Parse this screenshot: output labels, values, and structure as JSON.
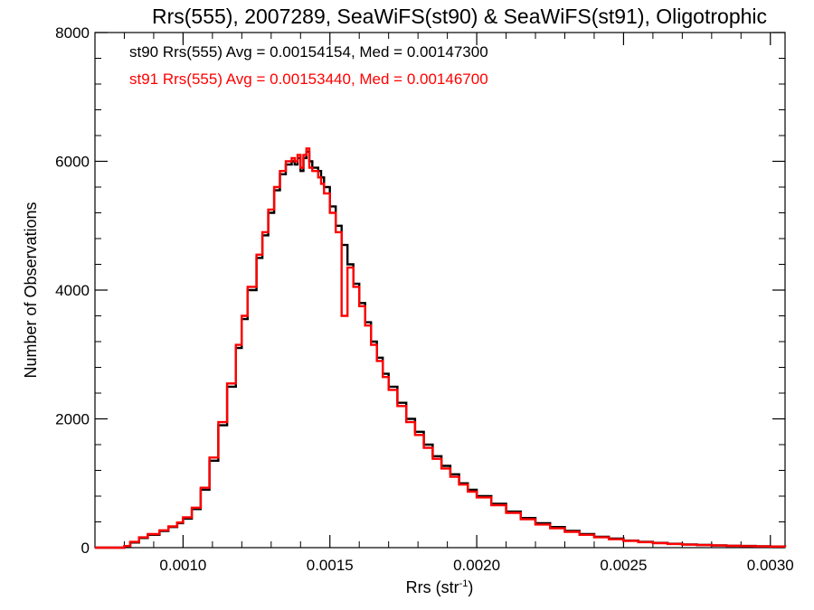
{
  "chart_data": {
    "type": "line",
    "title": "Rrs(555), 2007289, SeaWiFS(st90) & SeaWiFS(st91), Oligotrophic",
    "xlabel": "Rrs (str",
    "xlabel_sup": "-1",
    "xlabel_end": ")",
    "ylabel": "Number of Observations",
    "xlim": [
      0.0007,
      0.00305
    ],
    "ylim": [
      0,
      8000
    ],
    "x_ticks": [
      0.001,
      0.0015,
      0.002,
      0.0025,
      0.003
    ],
    "x_tick_labels": [
      "0.0010",
      "0.0015",
      "0.0020",
      "0.0025",
      "0.0030"
    ],
    "y_ticks": [
      0,
      2000,
      4000,
      6000,
      8000
    ],
    "y_tick_labels": [
      "0",
      "2000",
      "4000",
      "6000",
      "8000"
    ],
    "grid": false,
    "legend_position": "top-left",
    "series": [
      {
        "name": "st90",
        "legend": "st90 Rrs(555) Avg = 0.00154154, Med = 0.00147300",
        "color": "#000000",
        "step": true,
        "x": [
          0.0007,
          0.00078,
          0.0008,
          0.00082,
          0.00085,
          0.00088,
          0.00092,
          0.00095,
          0.00098,
          0.001,
          0.00103,
          0.00106,
          0.00109,
          0.00112,
          0.00115,
          0.00118,
          0.0012,
          0.00122,
          0.00125,
          0.00127,
          0.00129,
          0.00131,
          0.00133,
          0.00135,
          0.00137,
          0.00138,
          0.00139,
          0.0014,
          0.00141,
          0.00142,
          0.00143,
          0.00144,
          0.00145,
          0.00146,
          0.00147,
          0.00148,
          0.0015,
          0.00152,
          0.00154,
          0.00156,
          0.00158,
          0.0016,
          0.00162,
          0.00164,
          0.00166,
          0.00168,
          0.0017,
          0.00173,
          0.00176,
          0.00179,
          0.00182,
          0.00185,
          0.00188,
          0.00191,
          0.00194,
          0.00197,
          0.002,
          0.00205,
          0.0021,
          0.00215,
          0.0022,
          0.00225,
          0.0023,
          0.00235,
          0.0024,
          0.00245,
          0.0025,
          0.00255,
          0.0026,
          0.00265,
          0.0027,
          0.00275,
          0.0028,
          0.00285,
          0.0029,
          0.00295,
          0.003,
          0.00305
        ],
        "y": [
          0,
          0,
          20,
          80,
          150,
          200,
          260,
          320,
          380,
          450,
          600,
          900,
          1350,
          1900,
          2500,
          3100,
          3550,
          4000,
          4500,
          4850,
          5200,
          5550,
          5800,
          5950,
          6000,
          5950,
          6050,
          5850,
          6050,
          6150,
          6000,
          5900,
          5900,
          5850,
          5750,
          5600,
          5300,
          5000,
          4700,
          4400,
          4100,
          3800,
          3500,
          3200,
          2950,
          2700,
          2500,
          2250,
          2000,
          1800,
          1600,
          1420,
          1270,
          1140,
          1000,
          900,
          800,
          680,
          560,
          460,
          380,
          320,
          260,
          210,
          170,
          140,
          110,
          90,
          75,
          60,
          50,
          42,
          35,
          30,
          26,
          22,
          18,
          15
        ]
      },
      {
        "name": "st91",
        "legend": "st91 Rrs(555) Avg = 0.00153440, Med = 0.00146700",
        "color": "#ff0000",
        "step": true,
        "x": [
          0.0007,
          0.00078,
          0.0008,
          0.00082,
          0.00085,
          0.00088,
          0.00092,
          0.00095,
          0.00098,
          0.001,
          0.00103,
          0.00106,
          0.00109,
          0.00112,
          0.00115,
          0.00118,
          0.0012,
          0.00122,
          0.00125,
          0.00127,
          0.00129,
          0.00131,
          0.00133,
          0.00135,
          0.00137,
          0.00138,
          0.00139,
          0.0014,
          0.00141,
          0.00142,
          0.00143,
          0.00144,
          0.00145,
          0.00146,
          0.00147,
          0.00148,
          0.0015,
          0.00152,
          0.00154,
          0.00156,
          0.00158,
          0.0016,
          0.00162,
          0.00164,
          0.00166,
          0.00168,
          0.0017,
          0.00173,
          0.00176,
          0.00179,
          0.00182,
          0.00185,
          0.00188,
          0.00191,
          0.00194,
          0.00197,
          0.002,
          0.00205,
          0.0021,
          0.00215,
          0.0022,
          0.00225,
          0.0023,
          0.00235,
          0.0024,
          0.00245,
          0.0025,
          0.00255,
          0.0026,
          0.00265,
          0.0027,
          0.00275,
          0.0028,
          0.00285,
          0.0029,
          0.00295,
          0.003,
          0.00305
        ],
        "y": [
          0,
          0,
          25,
          90,
          160,
          210,
          270,
          330,
          390,
          470,
          620,
          930,
          1400,
          1950,
          2550,
          3150,
          3600,
          4050,
          4550,
          4900,
          5250,
          5600,
          5850,
          6000,
          6050,
          6000,
          6100,
          5900,
          6100,
          6200,
          5900,
          5850,
          5850,
          5750,
          5650,
          5500,
          5200,
          4900,
          3600,
          4350,
          4050,
          3750,
          3450,
          3150,
          2900,
          2650,
          2450,
          2200,
          1950,
          1750,
          1550,
          1380,
          1230,
          1100,
          980,
          870,
          780,
          660,
          540,
          440,
          360,
          300,
          245,
          200,
          160,
          130,
          105,
          85,
          70,
          57,
          47,
          40,
          33,
          28,
          24,
          20,
          17,
          14
        ]
      }
    ]
  }
}
